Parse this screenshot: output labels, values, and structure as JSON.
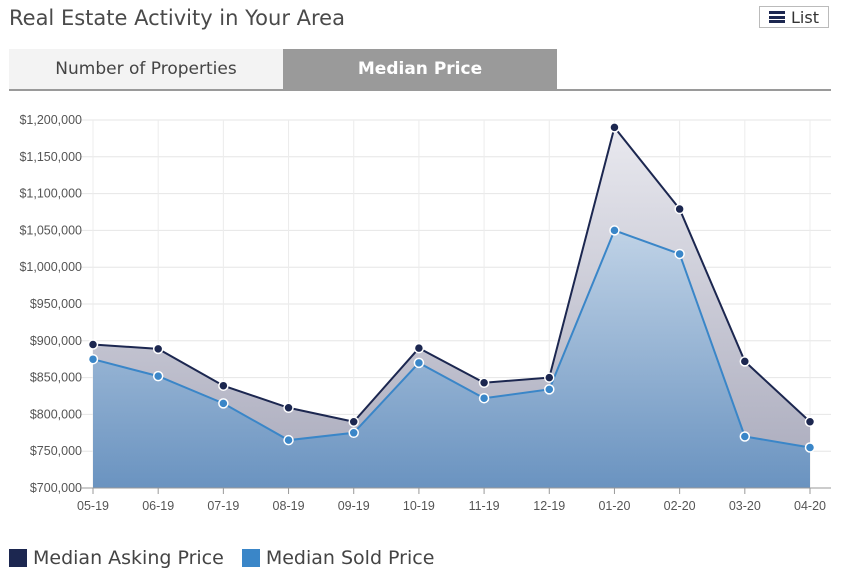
{
  "header": {
    "title": "Real Estate Activity in Your Area",
    "list_label": "List"
  },
  "tabs": [
    {
      "label": "Number of Properties",
      "active": false
    },
    {
      "label": "Median Price",
      "active": true
    }
  ],
  "colors": {
    "asking": "#1c2750",
    "sold": "#3a86c8"
  },
  "chart_data": {
    "type": "area",
    "title": "",
    "xlabel": "",
    "ylabel": "",
    "categories": [
      "05-19",
      "06-19",
      "07-19",
      "08-19",
      "09-19",
      "10-19",
      "11-19",
      "12-19",
      "01-20",
      "02-20",
      "03-20",
      "04-20"
    ],
    "ylim": [
      700000,
      1200000
    ],
    "yticks": [
      700000,
      750000,
      800000,
      850000,
      900000,
      950000,
      1000000,
      1050000,
      1100000,
      1150000,
      1200000
    ],
    "ytick_labels": [
      "$700,000",
      "$750,000",
      "$800,000",
      "$850,000",
      "$900,000",
      "$950,000",
      "$1,000,000",
      "$1,050,000",
      "$1,100,000",
      "$1,150,000",
      "$1,200,000"
    ],
    "grid": true,
    "legend_position": "bottom-left",
    "series": [
      {
        "name": "Median Asking Price",
        "values": [
          895000,
          889000,
          839000,
          809000,
          790000,
          890000,
          843000,
          850000,
          1190000,
          1079000,
          872000,
          790000
        ]
      },
      {
        "name": "Median Sold Price",
        "values": [
          875000,
          852000,
          815000,
          765000,
          775000,
          870000,
          822000,
          834000,
          1050000,
          1018000,
          770000,
          755000
        ]
      }
    ]
  }
}
